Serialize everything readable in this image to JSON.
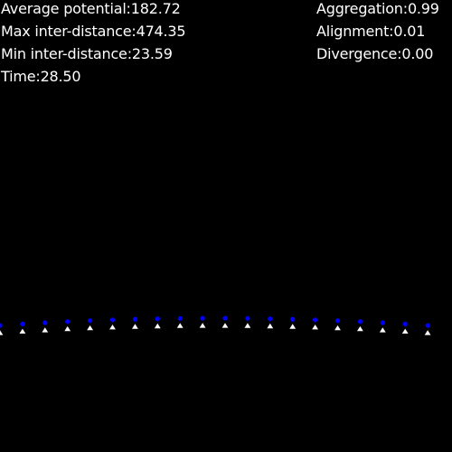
{
  "stats": {
    "average_potential": {
      "label": "Average potential:",
      "value": "182.72"
    },
    "max_inter_distance": {
      "label": "Max inter-distance:",
      "value": "474.35"
    },
    "min_inter_distance": {
      "label": "Min inter-distance:",
      "value": "23.59"
    },
    "time": {
      "label": "Time:",
      "value": "28.50"
    },
    "aggregation": {
      "label": "Aggregation:",
      "value": "0.99"
    },
    "alignment": {
      "label": "Alignment:",
      "value": "0.01"
    },
    "divergence": {
      "label": "Divergence:",
      "value": "0.00"
    }
  },
  "colors": {
    "background": "#000000",
    "text": "#ffffff",
    "agent": "#ffffff",
    "target_marker": "#0000ff"
  },
  "agent_count": 20
}
